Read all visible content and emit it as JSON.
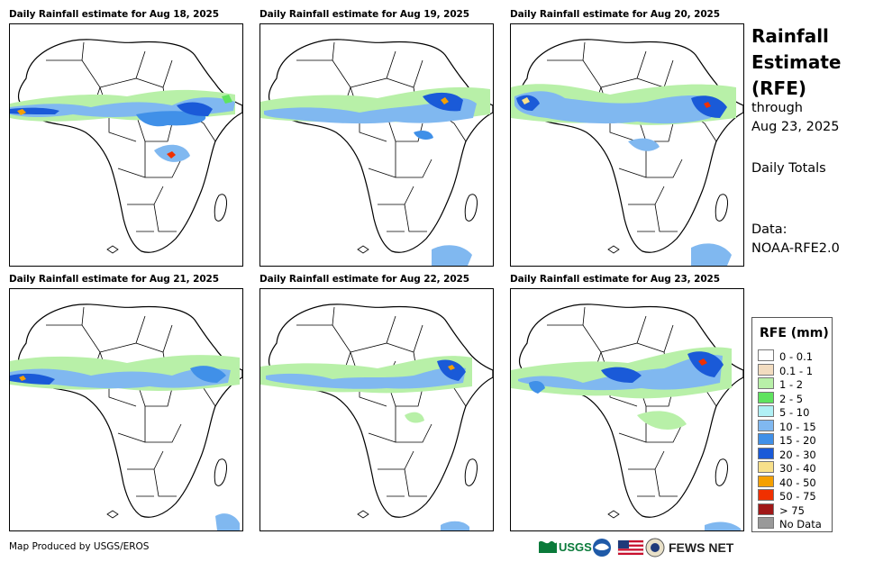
{
  "panels": [
    {
      "title": "Daily Rainfall estimate for Aug 18, 2025"
    },
    {
      "title": "Daily Rainfall estimate for Aug 19, 2025"
    },
    {
      "title": "Daily Rainfall estimate for Aug 20, 2025"
    },
    {
      "title": "Daily Rainfall estimate for Aug 21, 2025"
    },
    {
      "title": "Daily Rainfall estimate for Aug 22, 2025"
    },
    {
      "title": "Daily Rainfall estimate for Aug 23, 2025"
    }
  ],
  "side": {
    "title_line1": "Rainfall",
    "title_line2": "Estimate",
    "title_line3": "(RFE)",
    "through": "through",
    "date": "Aug 23, 2025",
    "totals": "Daily Totals",
    "data_label": "Data:",
    "data_source": "NOAA-RFE2.0"
  },
  "legend": {
    "title": "RFE (mm)",
    "items": [
      {
        "label": "0 - 0.1",
        "color": "#ffffff"
      },
      {
        "label": "0.1 - 1",
        "color": "#f2dcc0"
      },
      {
        "label": "1 - 2",
        "color": "#b8f0a8"
      },
      {
        "label": "2 - 5",
        "color": "#5fe35f"
      },
      {
        "label": "5 - 10",
        "color": "#b0f0f5"
      },
      {
        "label": "10 - 15",
        "color": "#80b8f0"
      },
      {
        "label": "15 - 20",
        "color": "#4090e8"
      },
      {
        "label": "20 - 30",
        "color": "#1a5ad8"
      },
      {
        "label": "30 - 40",
        "color": "#f8e08a"
      },
      {
        "label": "40 - 50",
        "color": "#f5a000"
      },
      {
        "label": "50 - 75",
        "color": "#f03000"
      },
      {
        "label": "> 75",
        "color": "#a01818"
      },
      {
        "label": "No Data",
        "color": "#999999"
      }
    ]
  },
  "footer": {
    "credit": "Map Produced by USGS/EROS",
    "usgs": "USGS",
    "fews": "FEWS NET"
  }
}
